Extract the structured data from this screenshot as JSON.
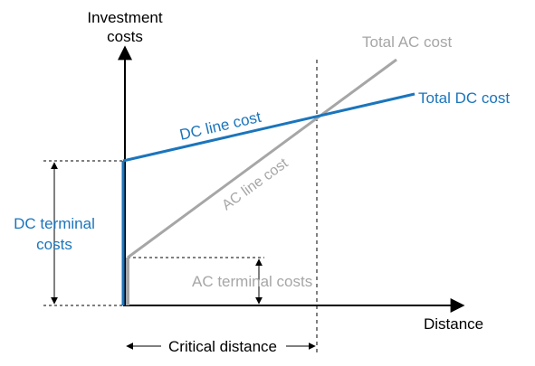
{
  "labels": {
    "yaxis_line1": "Investment",
    "yaxis_line2": "costs",
    "xaxis": "Distance",
    "total_ac": "Total AC cost",
    "total_dc": "Total DC cost",
    "dc_line": "DC line cost",
    "ac_line": "AC line cost",
    "dc_terminal_line1": "DC terminal",
    "dc_terminal_line2": "costs",
    "ac_terminal": "AC terminal costs",
    "critical_distance": "Critical distance"
  },
  "colors": {
    "dc": "#1b75bc",
    "ac": "#a6a6a6",
    "axis": "#000000",
    "text": "#000000"
  }
}
